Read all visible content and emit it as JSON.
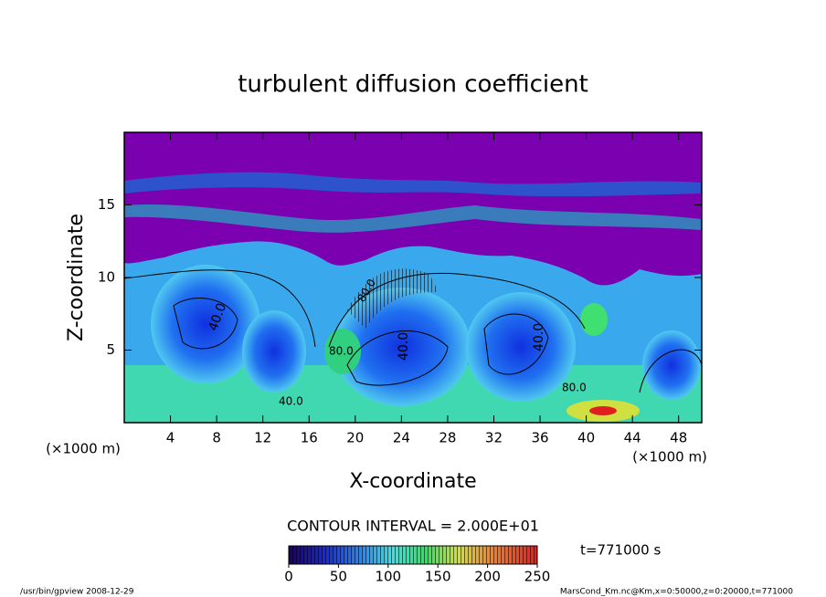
{
  "chart_data": {
    "type": "contour",
    "title": "turbulent diffusion coefficient",
    "x_label": "X-coordinate",
    "y_label": "Z-coordinate",
    "x_unit_labels": [
      "(×1000 m)",
      "(×1000 m)"
    ],
    "xlim": [
      0,
      50
    ],
    "xticks": [
      4,
      8,
      12,
      16,
      20,
      24,
      28,
      32,
      36,
      40,
      44,
      48
    ],
    "ylim": [
      0,
      20
    ],
    "yticks": [
      5,
      10,
      15
    ],
    "contour_interval_label": "CONTOUR INTERVAL = 2.000E+01",
    "contour_labels": [
      "40.0",
      "40.0",
      "40.0",
      "40.0",
      "80.0",
      "80.0",
      "80.0"
    ],
    "colorbar": {
      "clim": [
        0,
        250
      ],
      "ticks": [
        0,
        50,
        100,
        150,
        200,
        250
      ]
    },
    "time_label": "t=771000 s",
    "footer_left": "/usr/bin/gpview  2008-12-29",
    "footer_right": "MarsCond_Km.nc@Km,x=0:50000,z=0:20000,t=771000",
    "grid": false
  }
}
